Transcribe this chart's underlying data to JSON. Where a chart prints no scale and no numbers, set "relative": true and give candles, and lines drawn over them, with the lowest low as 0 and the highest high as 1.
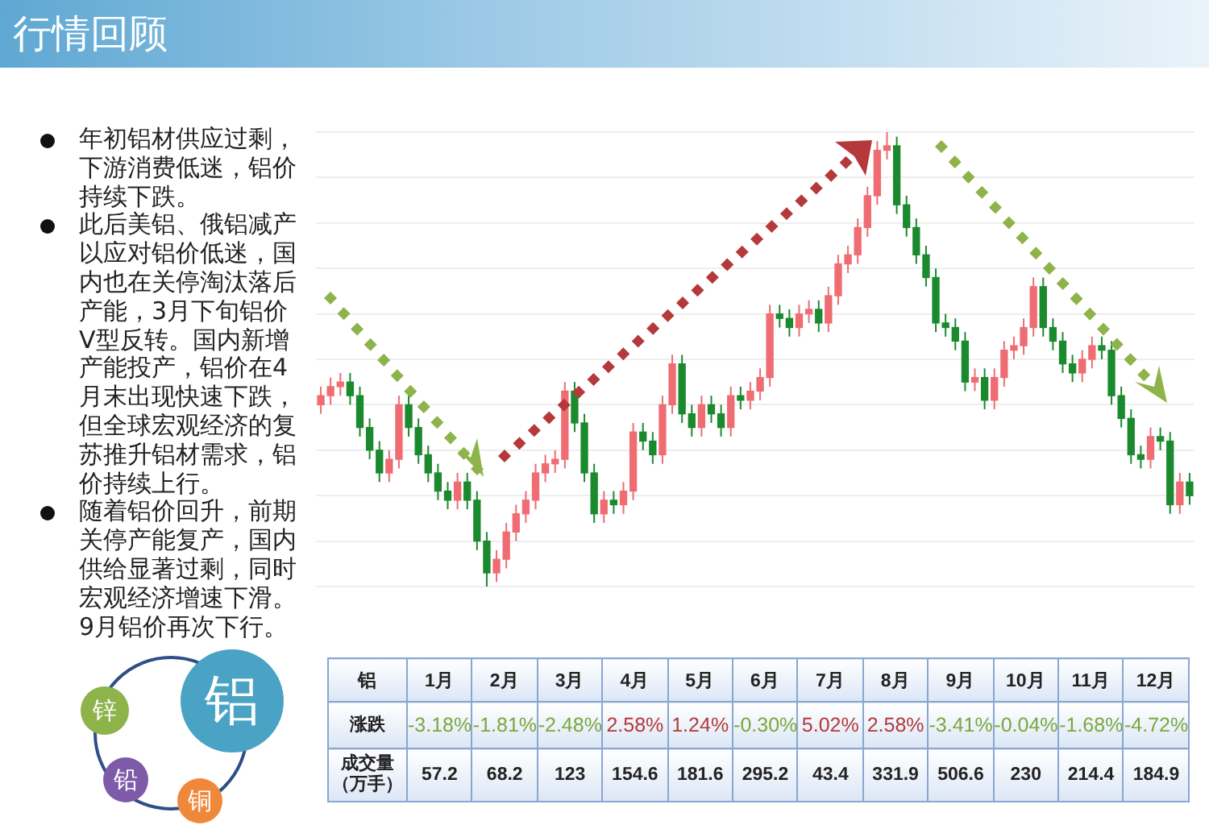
{
  "chart_data": [
    {
      "type": "candlestick",
      "title": "行情回顾",
      "relative": true,
      "grid": "y",
      "annotations": [
        "年初铝材供应过剩，下游消费低迷，铝价持续下跌。",
        "此后美铝、俄铝减产以应对铝价低迷，国内也在关停淘汰落后产能，3月下旬铝价V型反转。国内新增产能投产，铝价在4月末出现快速下跌，但全球宏观经济的复苏推升铝材需求，铝价持续上行。",
        "随着铝价回升，前期关停产能复产，国内供给显著过剩，同时宏观经济增速下滑。9月铝价再次下行。",
        "铝",
        "锌",
        "铅",
        "铜"
      ],
      "categories": [
        null,
        null,
        null,
        null,
        null,
        null,
        null,
        null,
        null,
        null,
        null,
        null,
        null,
        null,
        null,
        null,
        null,
        null,
        null,
        null,
        null,
        null,
        null,
        null,
        null,
        null,
        null,
        null,
        null,
        null,
        null,
        null,
        null,
        null,
        null,
        null,
        null,
        null,
        null,
        null,
        null,
        null,
        null,
        null,
        null,
        null,
        null,
        null,
        null,
        null,
        null,
        null,
        null,
        null,
        null,
        null,
        null,
        null,
        null,
        null,
        null,
        null,
        null,
        null,
        null,
        null,
        null,
        null,
        null,
        null,
        null,
        null,
        null,
        null,
        null,
        null,
        null,
        null,
        null,
        null,
        null,
        null,
        null,
        null,
        null,
        null,
        null,
        null,
        null,
        null
      ],
      "ohlc": [
        [
          0.4,
          0.44,
          0.38,
          0.42
        ],
        [
          0.42,
          0.46,
          0.4,
          0.44
        ],
        [
          0.44,
          0.47,
          0.42,
          0.45
        ],
        [
          0.45,
          0.47,
          0.4,
          0.42
        ],
        [
          0.42,
          0.44,
          0.33,
          0.35
        ],
        [
          0.35,
          0.37,
          0.28,
          0.3
        ],
        [
          0.3,
          0.32,
          0.23,
          0.25
        ],
        [
          0.25,
          0.3,
          0.23,
          0.28
        ],
        [
          0.28,
          0.42,
          0.26,
          0.4
        ],
        [
          0.4,
          0.42,
          0.33,
          0.35
        ],
        [
          0.35,
          0.37,
          0.27,
          0.29
        ],
        [
          0.29,
          0.31,
          0.23,
          0.25
        ],
        [
          0.25,
          0.27,
          0.19,
          0.21
        ],
        [
          0.21,
          0.23,
          0.17,
          0.19
        ],
        [
          0.19,
          0.25,
          0.17,
          0.23
        ],
        [
          0.23,
          0.25,
          0.17,
          0.19
        ],
        [
          0.19,
          0.21,
          0.08,
          0.1
        ],
        [
          0.1,
          0.12,
          0.0,
          0.03
        ],
        [
          0.03,
          0.08,
          0.01,
          0.06
        ],
        [
          0.06,
          0.14,
          0.04,
          0.12
        ],
        [
          0.12,
          0.18,
          0.1,
          0.16
        ],
        [
          0.16,
          0.21,
          0.14,
          0.19
        ],
        [
          0.19,
          0.27,
          0.17,
          0.25
        ],
        [
          0.25,
          0.29,
          0.23,
          0.27
        ],
        [
          0.27,
          0.3,
          0.25,
          0.28
        ],
        [
          0.28,
          0.45,
          0.26,
          0.43
        ],
        [
          0.43,
          0.45,
          0.34,
          0.36
        ],
        [
          0.36,
          0.38,
          0.23,
          0.25
        ],
        [
          0.25,
          0.27,
          0.14,
          0.16
        ],
        [
          0.16,
          0.21,
          0.14,
          0.19
        ],
        [
          0.19,
          0.21,
          0.16,
          0.18
        ],
        [
          0.18,
          0.23,
          0.16,
          0.21
        ],
        [
          0.21,
          0.36,
          0.19,
          0.34
        ],
        [
          0.34,
          0.36,
          0.3,
          0.32
        ],
        [
          0.32,
          0.34,
          0.27,
          0.29
        ],
        [
          0.29,
          0.42,
          0.27,
          0.4
        ],
        [
          0.4,
          0.51,
          0.38,
          0.49
        ],
        [
          0.49,
          0.51,
          0.36,
          0.38
        ],
        [
          0.38,
          0.4,
          0.33,
          0.35
        ],
        [
          0.35,
          0.42,
          0.33,
          0.4
        ],
        [
          0.4,
          0.42,
          0.36,
          0.38
        ],
        [
          0.38,
          0.4,
          0.33,
          0.35
        ],
        [
          0.35,
          0.44,
          0.33,
          0.42
        ],
        [
          0.42,
          0.44,
          0.39,
          0.41
        ],
        [
          0.41,
          0.45,
          0.39,
          0.43
        ],
        [
          0.43,
          0.48,
          0.41,
          0.46
        ],
        [
          0.46,
          0.62,
          0.44,
          0.6
        ],
        [
          0.6,
          0.62,
          0.57,
          0.59
        ],
        [
          0.59,
          0.61,
          0.55,
          0.57
        ],
        [
          0.57,
          0.62,
          0.55,
          0.6
        ],
        [
          0.6,
          0.63,
          0.58,
          0.61
        ],
        [
          0.61,
          0.63,
          0.56,
          0.58
        ],
        [
          0.58,
          0.66,
          0.56,
          0.64
        ],
        [
          0.64,
          0.73,
          0.62,
          0.71
        ],
        [
          0.71,
          0.75,
          0.69,
          0.73
        ],
        [
          0.73,
          0.81,
          0.71,
          0.79
        ],
        [
          0.79,
          0.88,
          0.77,
          0.86
        ],
        [
          0.86,
          0.98,
          0.84,
          0.96
        ],
        [
          0.96,
          1.0,
          0.94,
          0.97
        ],
        [
          0.97,
          0.99,
          0.82,
          0.84
        ],
        [
          0.84,
          0.86,
          0.77,
          0.79
        ],
        [
          0.79,
          0.81,
          0.71,
          0.73
        ],
        [
          0.73,
          0.75,
          0.66,
          0.68
        ],
        [
          0.68,
          0.7,
          0.56,
          0.58
        ],
        [
          0.58,
          0.6,
          0.55,
          0.57
        ],
        [
          0.57,
          0.59,
          0.52,
          0.54
        ],
        [
          0.54,
          0.56,
          0.43,
          0.45
        ],
        [
          0.45,
          0.48,
          0.43,
          0.46
        ],
        [
          0.46,
          0.48,
          0.39,
          0.41
        ],
        [
          0.41,
          0.48,
          0.39,
          0.46
        ],
        [
          0.46,
          0.54,
          0.44,
          0.52
        ],
        [
          0.52,
          0.55,
          0.5,
          0.53
        ],
        [
          0.53,
          0.59,
          0.51,
          0.57
        ],
        [
          0.57,
          0.68,
          0.55,
          0.66
        ],
        [
          0.66,
          0.68,
          0.55,
          0.57
        ],
        [
          0.57,
          0.59,
          0.52,
          0.54
        ],
        [
          0.54,
          0.56,
          0.47,
          0.49
        ],
        [
          0.49,
          0.51,
          0.45,
          0.47
        ],
        [
          0.47,
          0.52,
          0.45,
          0.5
        ],
        [
          0.5,
          0.55,
          0.48,
          0.53
        ],
        [
          0.53,
          0.55,
          0.5,
          0.52
        ],
        [
          0.52,
          0.54,
          0.4,
          0.42
        ],
        [
          0.42,
          0.44,
          0.35,
          0.37
        ],
        [
          0.37,
          0.39,
          0.27,
          0.29
        ],
        [
          0.29,
          0.31,
          0.26,
          0.28
        ],
        [
          0.28,
          0.35,
          0.26,
          0.33
        ],
        [
          0.33,
          0.35,
          0.3,
          0.32
        ],
        [
          0.32,
          0.34,
          0.16,
          0.18
        ],
        [
          0.18,
          0.25,
          0.16,
          0.23
        ],
        [
          0.23,
          0.25,
          0.18,
          0.2
        ]
      ]
    },
    {
      "type": "heatmap",
      "title": "铝",
      "categories": [
        "1月",
        "2月",
        "3月",
        "4月",
        "5月",
        "6月",
        "7月",
        "8月",
        "9月",
        "10月",
        "11月",
        "12月"
      ],
      "y_categories": [
        "涨跌",
        "成交量（万手）"
      ],
      "cells": [
        [
          -3.18,
          -1.81,
          -2.48,
          2.58,
          1.24,
          -0.3,
          5.02,
          2.58,
          -3.41,
          -0.04,
          -1.68,
          -4.72
        ],
        [
          57.2,
          68.2,
          123,
          154.6,
          181.6,
          295.2,
          43.4,
          331.9,
          506.6,
          230,
          214.4,
          184.9
        ]
      ],
      "cell_labels": [
        [
          "-3.18%",
          "-1.81%",
          "-2.48%",
          "2.58%",
          "1.24%",
          "-0.30%",
          "5.02%",
          "2.58%",
          "-3.41%",
          "-0.04%",
          "-1.68%",
          "-4.72%"
        ],
        [
          "57.2",
          "68.2",
          "123",
          "154.6",
          "181.6",
          "295.2",
          "43.4",
          "331.9",
          "506.6",
          "230",
          "214.4",
          "184.9"
        ]
      ]
    }
  ]
}
